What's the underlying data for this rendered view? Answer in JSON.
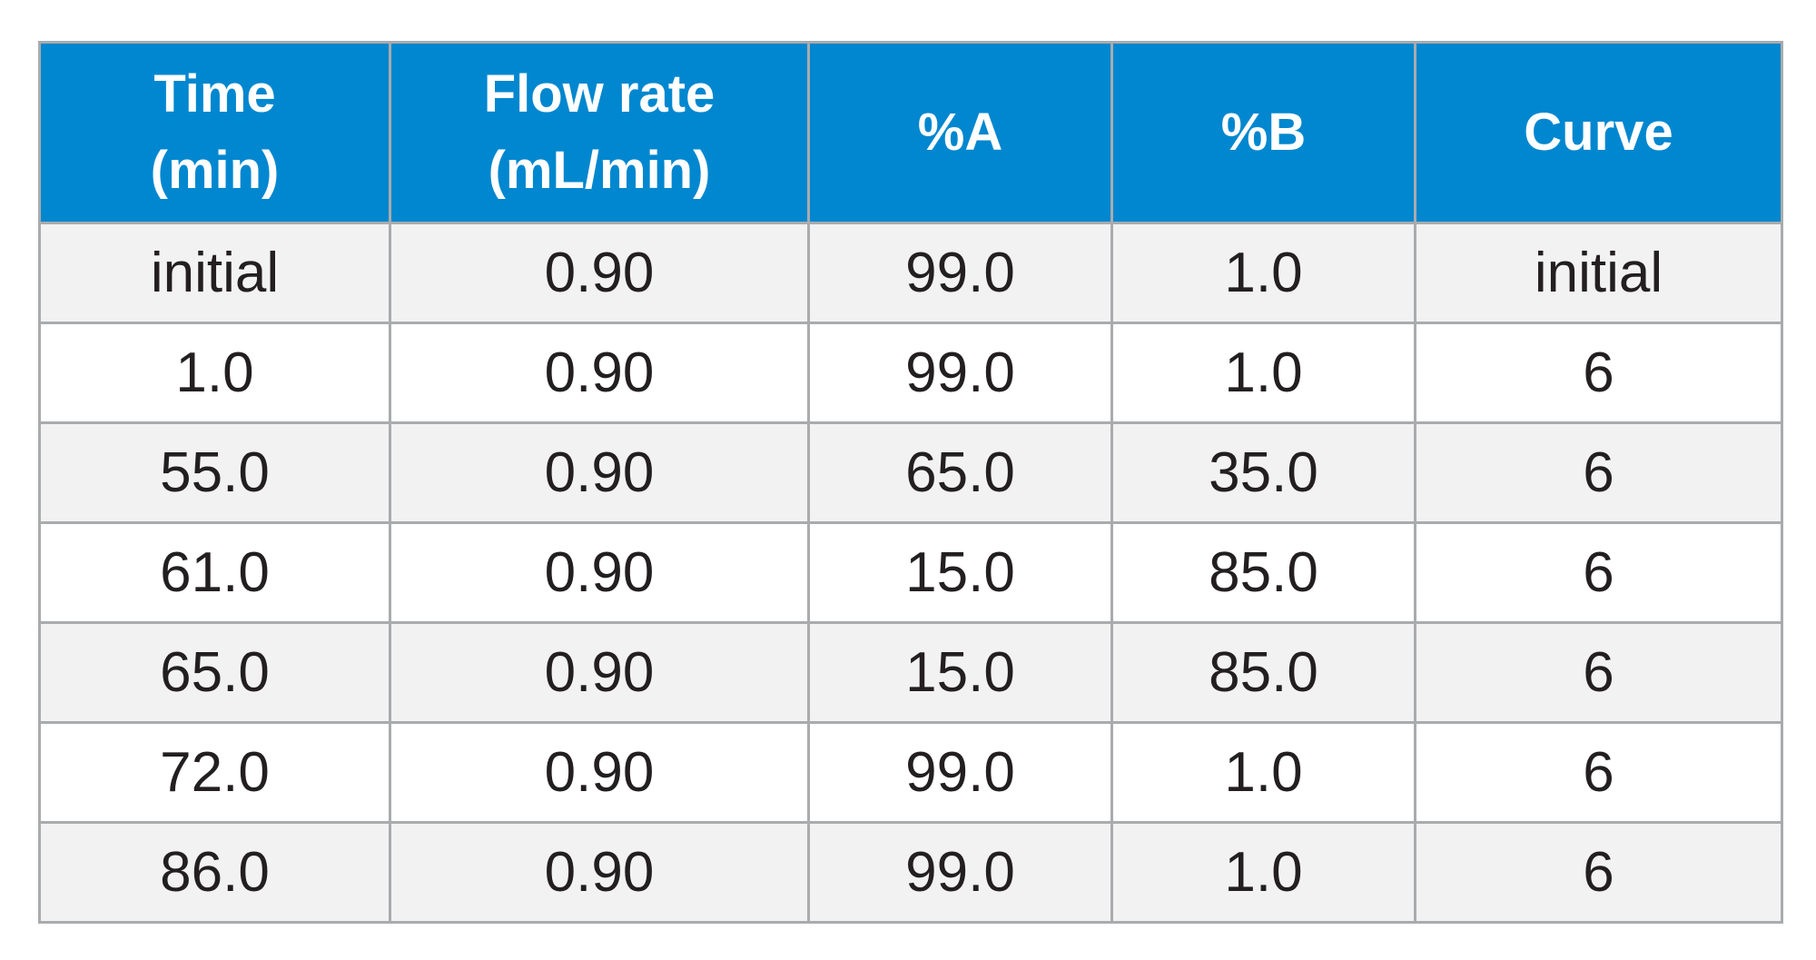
{
  "table": {
    "headers": [
      {
        "lines": [
          "Time",
          "(min)"
        ]
      },
      {
        "lines": [
          "Flow rate",
          "(mL/min)"
        ]
      },
      {
        "lines": [
          "%A"
        ]
      },
      {
        "lines": [
          "%B"
        ]
      },
      {
        "lines": [
          "Curve"
        ]
      }
    ],
    "rows": [
      [
        "initial",
        "0.90",
        "99.0",
        "1.0",
        "initial"
      ],
      [
        "1.0",
        "0.90",
        "99.0",
        "1.0",
        "6"
      ],
      [
        "55.0",
        "0.90",
        "65.0",
        "35.0",
        "6"
      ],
      [
        "61.0",
        "0.90",
        "15.0",
        "85.0",
        "6"
      ],
      [
        "65.0",
        "0.90",
        "15.0",
        "85.0",
        "6"
      ],
      [
        "72.0",
        "0.90",
        "99.0",
        "1.0",
        "6"
      ],
      [
        "86.0",
        "0.90",
        "99.0",
        "1.0",
        "6"
      ]
    ]
  },
  "colors": {
    "header_background": "#0087cf",
    "header_text": "#ffffff",
    "shaded_row": "#f2f2f3",
    "plain_row": "#ffffff",
    "border": "#a9abad",
    "body_text": "#231f20"
  }
}
